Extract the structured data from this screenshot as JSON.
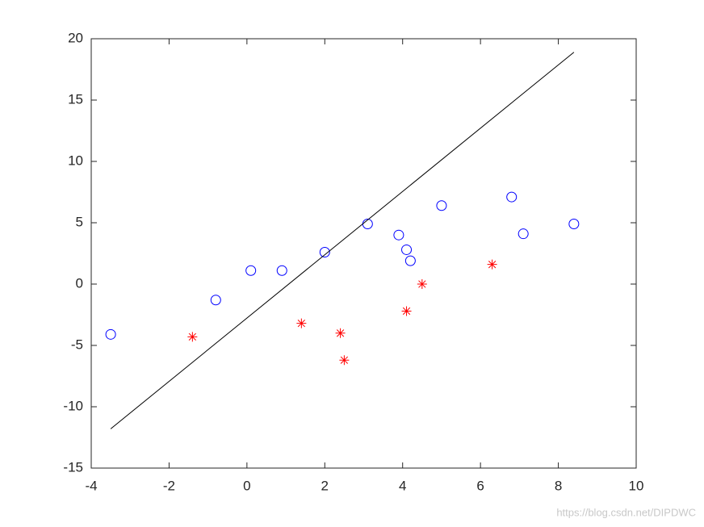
{
  "chart_data": {
    "type": "scatter",
    "xlim": [
      -4,
      10
    ],
    "xticks": [
      -4,
      -2,
      0,
      2,
      4,
      6,
      8,
      10
    ],
    "ylim": [
      -15,
      20
    ],
    "yticks": [
      -15,
      -10,
      -5,
      0,
      5,
      10,
      15,
      20
    ],
    "box": true,
    "series": [
      {
        "marker": "circle",
        "color": "#0000ff",
        "x": [
          -3.5,
          -0.8,
          0.1,
          0.9,
          2.0,
          3.1,
          3.9,
          4.1,
          4.2,
          5.0,
          6.8,
          7.1,
          8.4
        ],
        "values": [
          -4.1,
          -1.3,
          1.1,
          1.1,
          2.6,
          4.9,
          4.0,
          2.8,
          1.9,
          6.4,
          7.1,
          4.1,
          4.9
        ]
      },
      {
        "marker": "asterisk",
        "color": "#ff0000",
        "x": [
          -1.4,
          1.4,
          2.4,
          2.5,
          4.1,
          4.5,
          6.3
        ],
        "values": [
          -4.3,
          -3.2,
          -4.0,
          -6.2,
          -2.2,
          0,
          1.6
        ]
      },
      {
        "marker": "line",
        "color": "#000000",
        "x": [
          -3.5,
          8.4
        ],
        "values": [
          -11.8,
          18.9
        ]
      }
    ],
    "watermark": "https://blog.csdn.net/DIPDWC"
  }
}
